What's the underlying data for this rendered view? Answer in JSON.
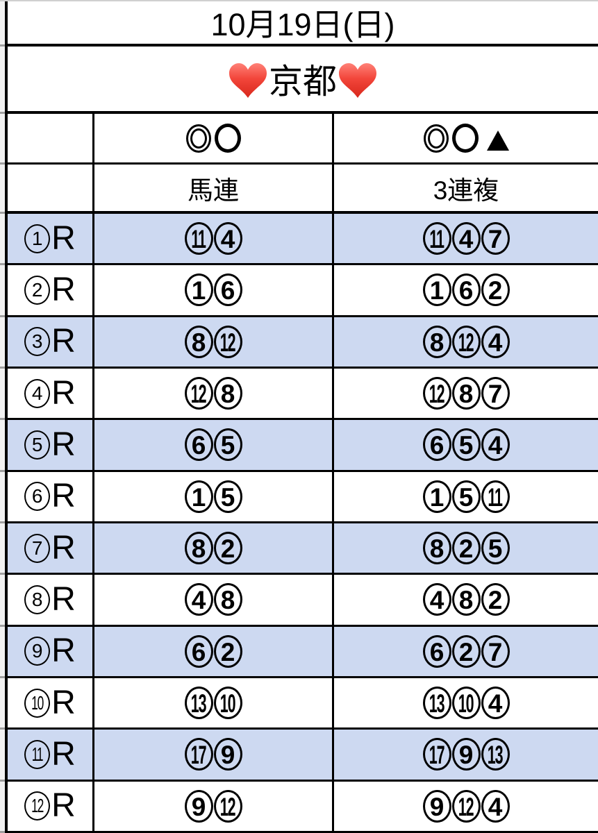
{
  "sheet": {
    "date": "10月19日(日)",
    "venue": "京都",
    "venue_icons": [
      "red-heart",
      "red-heart"
    ],
    "col_headers": {
      "blank": "",
      "marks_umaren": [
        "double-circle",
        "circle"
      ],
      "marks_sanrenpuku": [
        "double-circle",
        "circle",
        "triangle"
      ],
      "umaren_label": "馬連",
      "sanrenpuku_label": "3連複"
    },
    "races": [
      {
        "no": 1,
        "suffix": "R",
        "umaren": [
          11,
          4
        ],
        "sanrenpuku": [
          11,
          4,
          7
        ],
        "highlighted": true
      },
      {
        "no": 2,
        "suffix": "R",
        "umaren": [
          1,
          6
        ],
        "sanrenpuku": [
          1,
          6,
          2
        ],
        "highlighted": false
      },
      {
        "no": 3,
        "suffix": "R",
        "umaren": [
          8,
          12
        ],
        "sanrenpuku": [
          8,
          12,
          4
        ],
        "highlighted": true
      },
      {
        "no": 4,
        "suffix": "R",
        "umaren": [
          12,
          8
        ],
        "sanrenpuku": [
          12,
          8,
          7
        ],
        "highlighted": false
      },
      {
        "no": 5,
        "suffix": "R",
        "umaren": [
          6,
          5
        ],
        "sanrenpuku": [
          6,
          5,
          4
        ],
        "highlighted": true
      },
      {
        "no": 6,
        "suffix": "R",
        "umaren": [
          1,
          5
        ],
        "sanrenpuku": [
          1,
          5,
          11
        ],
        "highlighted": false
      },
      {
        "no": 7,
        "suffix": "R",
        "umaren": [
          8,
          2
        ],
        "sanrenpuku": [
          8,
          2,
          5
        ],
        "highlighted": true
      },
      {
        "no": 8,
        "suffix": "R",
        "umaren": [
          4,
          8
        ],
        "sanrenpuku": [
          4,
          8,
          2
        ],
        "highlighted": false
      },
      {
        "no": 9,
        "suffix": "R",
        "umaren": [
          6,
          2
        ],
        "sanrenpuku": [
          6,
          2,
          7
        ],
        "highlighted": true
      },
      {
        "no": 10,
        "suffix": "R",
        "umaren": [
          13,
          10
        ],
        "sanrenpuku": [
          13,
          10,
          4
        ],
        "highlighted": false
      },
      {
        "no": 11,
        "suffix": "R",
        "umaren": [
          17,
          9
        ],
        "sanrenpuku": [
          17,
          9,
          13
        ],
        "highlighted": true
      },
      {
        "no": 12,
        "suffix": "R",
        "umaren": [
          9,
          12
        ],
        "sanrenpuku": [
          9,
          12,
          4
        ],
        "highlighted": false
      }
    ],
    "colors": {
      "highlight_row": "#cdd9f1",
      "border": "#000000",
      "gutter_bg": "#f2f2f2",
      "gutter_line": "#9f9f9f",
      "heart_red": "#f2453a"
    }
  }
}
